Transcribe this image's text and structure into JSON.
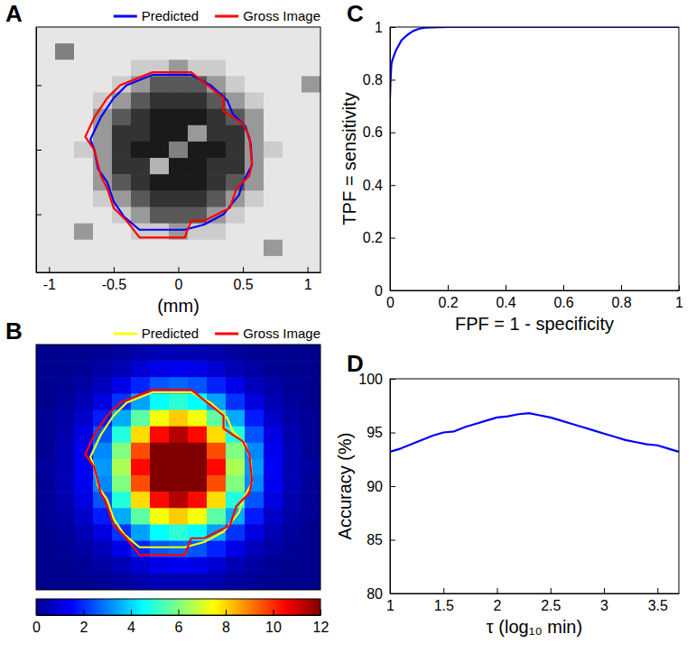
{
  "chart_data": [
    {
      "type": "heatmap",
      "title": "A",
      "xlabel": "(mm)",
      "color": "gray",
      "xlim": [
        -1.1,
        1.1
      ],
      "ylim": [
        -0.95,
        0.95
      ],
      "xticks": [
        -1,
        -0.5,
        0,
        0.5,
        1
      ],
      "yticks": [
        -0.5,
        0,
        0.5
      ],
      "tick_labels": "x",
      "legend": "top",
      "color_range": [
        0,
        1
      ],
      "cells": [
        [
          0.9,
          0.9,
          0.9,
          0.9,
          0.9,
          0.9,
          0.9,
          0.9,
          0.9,
          0.9,
          0.9,
          0.9,
          0.9,
          0.9,
          0.9
        ],
        [
          0.9,
          0.5,
          0.9,
          0.9,
          0.9,
          0.9,
          0.9,
          0.9,
          0.9,
          0.9,
          0.9,
          0.9,
          0.9,
          0.9,
          0.9
        ],
        [
          0.9,
          0.9,
          0.9,
          0.9,
          0.9,
          0.8,
          0.8,
          0.6,
          0.8,
          0.8,
          0.9,
          0.9,
          0.9,
          0.9,
          0.9
        ],
        [
          0.9,
          0.9,
          0.9,
          0.9,
          0.8,
          0.6,
          0.35,
          0.35,
          0.35,
          0.6,
          0.8,
          0.9,
          0.9,
          0.9,
          0.6
        ],
        [
          0.9,
          0.9,
          0.9,
          0.8,
          0.6,
          0.35,
          0.2,
          0.2,
          0.2,
          0.35,
          0.6,
          0.8,
          0.9,
          0.9,
          0.9
        ],
        [
          0.9,
          0.9,
          0.9,
          0.6,
          0.35,
          0.2,
          0.1,
          0.1,
          0.1,
          0.2,
          0.35,
          0.6,
          0.9,
          0.9,
          0.9
        ],
        [
          0.9,
          0.9,
          0.9,
          0.6,
          0.2,
          0.2,
          0.1,
          0.1,
          0.6,
          0.2,
          0.2,
          0.6,
          0.9,
          0.9,
          0.9
        ],
        [
          0.9,
          0.9,
          0.8,
          0.6,
          0.2,
          0.1,
          0.1,
          0.5,
          0.1,
          0.1,
          0.2,
          0.6,
          0.8,
          0.9,
          0.9
        ],
        [
          0.9,
          0.9,
          0.9,
          0.6,
          0.2,
          0.2,
          0.7,
          0.1,
          0.1,
          0.2,
          0.2,
          0.6,
          0.9,
          0.9,
          0.9
        ],
        [
          0.9,
          0.9,
          0.9,
          0.6,
          0.35,
          0.2,
          0.1,
          0.1,
          0.1,
          0.2,
          0.35,
          0.6,
          0.9,
          0.9,
          0.9
        ],
        [
          0.9,
          0.9,
          0.9,
          0.8,
          0.6,
          0.35,
          0.2,
          0.2,
          0.2,
          0.35,
          0.6,
          0.8,
          0.9,
          0.9,
          0.9
        ],
        [
          0.9,
          0.9,
          0.9,
          0.9,
          0.8,
          0.6,
          0.35,
          0.35,
          0.35,
          0.6,
          0.8,
          0.9,
          0.9,
          0.9,
          0.9
        ],
        [
          0.9,
          0.9,
          0.6,
          0.9,
          0.9,
          0.8,
          0.8,
          0.6,
          0.8,
          0.8,
          0.9,
          0.9,
          0.9,
          0.9,
          0.9
        ],
        [
          0.9,
          0.9,
          0.9,
          0.9,
          0.9,
          0.9,
          0.9,
          0.9,
          0.9,
          0.9,
          0.9,
          0.9,
          0.6,
          0.9,
          0.9
        ],
        [
          0.9,
          0.9,
          0.9,
          0.9,
          0.9,
          0.9,
          0.9,
          0.9,
          0.9,
          0.9,
          0.9,
          0.9,
          0.9,
          0.9,
          0.9
        ]
      ],
      "series": [
        {
          "name": "Predicted",
          "type": "line",
          "color": "#0000ff",
          "x": [
            -0.2,
            0.1,
            0.25,
            0.38,
            0.42,
            0.52,
            0.56,
            0.57,
            0.5,
            0.47,
            0.35,
            0.2,
            0.05,
            -0.3,
            -0.42,
            -0.5,
            -0.55,
            -0.62,
            -0.65,
            -0.68,
            -0.6,
            -0.5,
            -0.4,
            -0.2
          ],
          "values": [
            0.58,
            0.58,
            0.5,
            0.38,
            0.28,
            0.18,
            0.05,
            -0.12,
            -0.25,
            -0.35,
            -0.5,
            -0.58,
            -0.62,
            -0.62,
            -0.52,
            -0.4,
            -0.25,
            -0.15,
            0,
            0.08,
            0.25,
            0.4,
            0.5,
            0.58
          ]
        },
        {
          "name": "Gross Image",
          "type": "line",
          "color": "#ff0000",
          "x": [
            -0.2,
            0.1,
            0.2,
            0.35,
            0.35,
            0.5,
            0.55,
            0.57,
            0.55,
            0.45,
            0.4,
            0.2,
            0.1,
            0.05,
            -0.3,
            -0.4,
            -0.5,
            -0.55,
            -0.6,
            -0.65,
            -0.72,
            -0.65,
            -0.55,
            -0.45,
            -0.2
          ],
          "values": [
            0.6,
            0.6,
            0.52,
            0.4,
            0.3,
            0.2,
            0.1,
            -0.1,
            -0.2,
            -0.3,
            -0.45,
            -0.55,
            -0.55,
            -0.68,
            -0.68,
            -0.55,
            -0.45,
            -0.3,
            -0.2,
            0,
            0.1,
            0.25,
            0.4,
            0.5,
            0.6
          ]
        }
      ]
    },
    {
      "type": "heatmap",
      "title": "B",
      "color": "jet",
      "xlim": [
        -1.1,
        1.1
      ],
      "ylim": [
        -0.95,
        0.95
      ],
      "tick_labels": false,
      "legend": "top",
      "color_range": [
        0,
        12
      ],
      "color_ticks": [
        0,
        2,
        4,
        6,
        8,
        10,
        12
      ],
      "cells": [
        [
          0,
          0,
          0,
          0.1,
          0.2,
          0.4,
          0.5,
          0.5,
          0.5,
          0.4,
          0.2,
          0.1,
          0,
          0,
          0
        ],
        [
          0,
          0,
          0.1,
          0.3,
          0.5,
          0.9,
          1.2,
          1.3,
          1.2,
          0.9,
          0.5,
          0.3,
          0.1,
          0,
          0
        ],
        [
          0,
          0.1,
          0.3,
          0.6,
          1.2,
          1.9,
          2.5,
          2.7,
          2.5,
          1.9,
          1.2,
          0.6,
          0.3,
          0.1,
          0
        ],
        [
          0,
          0.2,
          0.5,
          1.1,
          2.1,
          3.4,
          4.5,
          5,
          4.5,
          3.4,
          2.1,
          1.1,
          0.5,
          0.2,
          0
        ],
        [
          0.1,
          0.3,
          0.8,
          1.8,
          3.5,
          5.6,
          7.4,
          8.1,
          7.4,
          5.6,
          3.5,
          1.8,
          0.8,
          0.3,
          0.1
        ],
        [
          0.1,
          0.4,
          1.1,
          2.5,
          4.9,
          7.9,
          10.4,
          11.4,
          10.4,
          7.9,
          4.9,
          2.5,
          1.1,
          0.4,
          0.1
        ],
        [
          0.1,
          0.5,
          1.3,
          3.1,
          6,
          9.6,
          12,
          12,
          12,
          9.6,
          6,
          3.1,
          1.3,
          0.5,
          0.1
        ],
        [
          0.2,
          0.5,
          1.4,
          3.3,
          6.5,
          10.4,
          12,
          12,
          12,
          10.4,
          6.5,
          3.3,
          1.4,
          0.5,
          0.2
        ],
        [
          0.1,
          0.5,
          1.3,
          3.1,
          6,
          9.6,
          12,
          12,
          12,
          9.6,
          6,
          3.1,
          1.3,
          0.5,
          0.1
        ],
        [
          0.1,
          0.4,
          1.1,
          2.5,
          4.9,
          7.9,
          10.4,
          11.4,
          10.4,
          7.9,
          4.9,
          2.5,
          1.1,
          0.4,
          0.1
        ],
        [
          0.1,
          0.3,
          0.8,
          1.8,
          3.5,
          5.6,
          7.4,
          8.1,
          7.4,
          5.6,
          3.5,
          1.8,
          0.8,
          0.3,
          0.1
        ],
        [
          0,
          0.2,
          0.5,
          1.1,
          2.1,
          3.4,
          4.5,
          5,
          4.5,
          3.4,
          2.1,
          1.1,
          0.5,
          0.2,
          0
        ],
        [
          0,
          0.1,
          0.3,
          0.6,
          1.2,
          1.9,
          2.5,
          2.7,
          2.5,
          1.9,
          1.2,
          0.6,
          0.3,
          0.1,
          0
        ],
        [
          0,
          0,
          0.1,
          0.3,
          0.5,
          0.9,
          1.2,
          1.3,
          1.2,
          0.9,
          0.5,
          0.3,
          0.1,
          0,
          0
        ],
        [
          0,
          0,
          0,
          0.1,
          0.2,
          0.4,
          0.5,
          0.5,
          0.5,
          0.4,
          0.2,
          0.1,
          0,
          0,
          0
        ]
      ],
      "series": [
        {
          "name": "Predicted",
          "type": "line",
          "color": "#ffff00",
          "x": [
            -0.2,
            0.1,
            0.25,
            0.38,
            0.42,
            0.52,
            0.56,
            0.57,
            0.5,
            0.47,
            0.35,
            0.2,
            0.05,
            -0.3,
            -0.42,
            -0.5,
            -0.55,
            -0.62,
            -0.65,
            -0.68,
            -0.6,
            -0.5,
            -0.4,
            -0.2
          ],
          "values": [
            0.58,
            0.58,
            0.5,
            0.38,
            0.28,
            0.18,
            0.05,
            -0.12,
            -0.25,
            -0.35,
            -0.5,
            -0.58,
            -0.62,
            -0.62,
            -0.52,
            -0.4,
            -0.25,
            -0.15,
            0,
            0.08,
            0.25,
            0.4,
            0.5,
            0.58
          ]
        },
        {
          "name": "Gross Image",
          "type": "line",
          "color": "#ff0000",
          "x": [
            -0.2,
            0.1,
            0.2,
            0.35,
            0.35,
            0.5,
            0.55,
            0.57,
            0.55,
            0.45,
            0.4,
            0.2,
            0.1,
            0.05,
            -0.3,
            -0.4,
            -0.5,
            -0.55,
            -0.6,
            -0.65,
            -0.72,
            -0.65,
            -0.55,
            -0.45,
            -0.2
          ],
          "values": [
            0.6,
            0.6,
            0.52,
            0.4,
            0.3,
            0.2,
            0.1,
            -0.1,
            -0.2,
            -0.3,
            -0.45,
            -0.55,
            -0.55,
            -0.68,
            -0.68,
            -0.55,
            -0.45,
            -0.3,
            -0.2,
            0,
            0.1,
            0.25,
            0.4,
            0.5,
            0.6
          ]
        }
      ]
    },
    {
      "type": "line",
      "title": "C",
      "xlabel": "FPF = 1 - specificity",
      "ylabel": "TPF = sensitivity",
      "xlim": [
        0,
        1
      ],
      "ylim": [
        0,
        1
      ],
      "xticks": [
        0,
        0.2,
        0.4,
        0.6,
        0.8,
        1
      ],
      "yticks": [
        0,
        0.2,
        0.4,
        0.6,
        0.8,
        1
      ],
      "series": [
        {
          "color": "#0000ff",
          "x": [
            0,
            0.002,
            0.005,
            0.01,
            0.02,
            0.03,
            0.04,
            0.06,
            0.08,
            0.1,
            0.12,
            0.2,
            0.5,
            1
          ],
          "values": [
            0.73,
            0.8,
            0.86,
            0.88,
            0.91,
            0.93,
            0.95,
            0.97,
            0.985,
            0.993,
            0.998,
            1,
            1,
            1
          ]
        }
      ]
    },
    {
      "type": "line",
      "title": "D",
      "xlabel": "τ (log₁₀ min)",
      "ylabel": "Accuracy (%)",
      "xlim": [
        1,
        3.7
      ],
      "ylim": [
        80,
        100
      ],
      "xticks": [
        1,
        1.5,
        2,
        2.5,
        3,
        3.5
      ],
      "yticks": [
        80,
        85,
        90,
        95,
        100
      ],
      "series": [
        {
          "color": "#0000ff",
          "x": [
            1,
            1.1,
            1.2,
            1.3,
            1.4,
            1.5,
            1.6,
            1.7,
            1.8,
            1.9,
            2,
            2.1,
            2.2,
            2.3,
            2.4,
            2.5,
            2.6,
            2.7,
            2.8,
            2.9,
            3,
            3.1,
            3.2,
            3.3,
            3.4,
            3.5,
            3.6,
            3.7
          ],
          "values": [
            93.2,
            93.5,
            93.9,
            94.3,
            94.7,
            95,
            95.1,
            95.5,
            95.8,
            96.1,
            96.4,
            96.5,
            96.7,
            96.8,
            96.6,
            96.4,
            96.1,
            95.8,
            95.5,
            95.2,
            94.9,
            94.6,
            94.3,
            94.1,
            93.9,
            93.8,
            93.5,
            93.2
          ]
        }
      ]
    }
  ]
}
